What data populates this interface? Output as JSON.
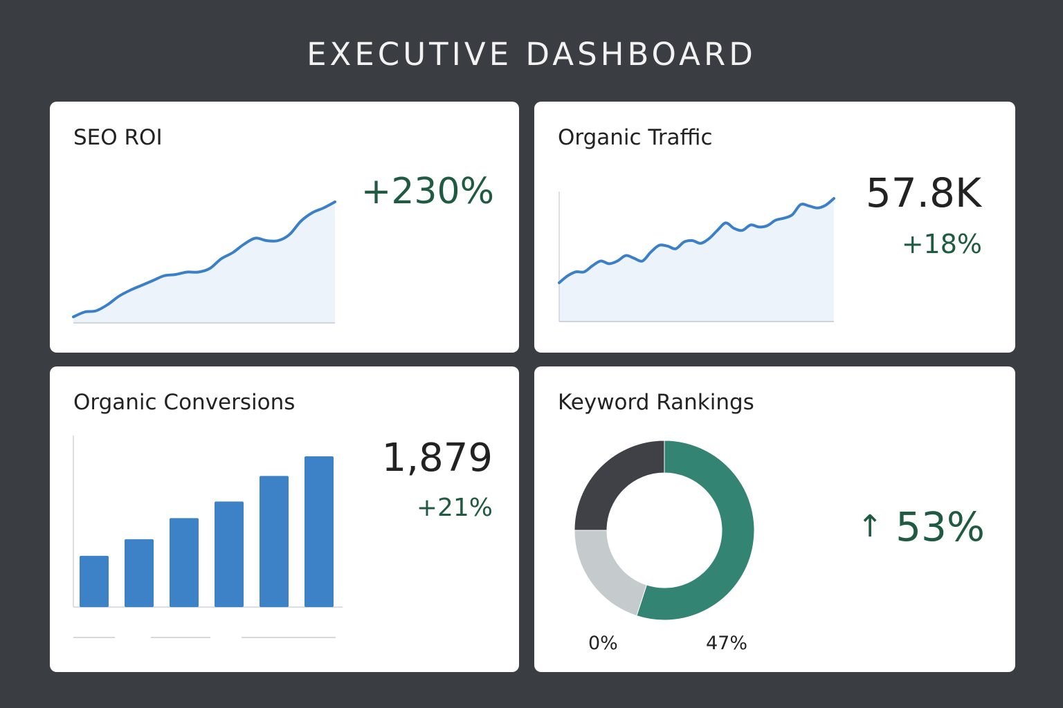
{
  "header": {
    "title": "EXECUTIVE DASHBOARD"
  },
  "colors": {
    "background": "#3a3e42",
    "card": "#ffffff",
    "line": "#3a7fc8",
    "area_fill": "#edf3fb",
    "positive": "#1f5a42",
    "bar": "#3d82c6",
    "donut_green": "#348474",
    "donut_dark": "#3f4146",
    "donut_gray": "#c5cacd"
  },
  "cards": {
    "seo_roi": {
      "title": "SEO ROI",
      "value": "+230%"
    },
    "organic_traffic": {
      "title": "Organic Traffic",
      "value": "57.8K",
      "change": "+18%"
    },
    "organic_conversions": {
      "title": "Organic Conversions",
      "value": "1,879",
      "change": "+21%"
    },
    "keyword_rankings": {
      "title": "Keyword Rankings",
      "change_icon": "arrow-up-icon",
      "change": "53%",
      "labels": [
        "0%",
        "47%"
      ]
    }
  },
  "chart_data": [
    {
      "type": "area",
      "card": "seo_roi",
      "values": [
        5,
        9,
        10,
        15,
        22,
        27,
        31,
        35,
        39,
        40,
        42,
        42,
        45,
        53,
        58,
        65,
        70,
        68,
        68,
        73,
        84,
        91,
        95,
        100
      ],
      "ylim": [
        0,
        100
      ]
    },
    {
      "type": "area",
      "card": "organic_traffic",
      "values": [
        57,
        67,
        73,
        73,
        82,
        89,
        85,
        89,
        97,
        93,
        89,
        102,
        112,
        111,
        107,
        117,
        119,
        115,
        122,
        134,
        145,
        137,
        134,
        142,
        139,
        141,
        149,
        152,
        157,
        172,
        170,
        167,
        171,
        181
      ],
      "ylim": [
        0,
        181
      ]
    },
    {
      "type": "bar",
      "card": "organic_conversions",
      "values": [
        34,
        45,
        59,
        70,
        87,
        100
      ],
      "ylim": [
        0,
        100
      ]
    },
    {
      "type": "pie",
      "card": "keyword_rankings",
      "donut": true,
      "slices": [
        {
          "value": 55,
          "color": "#348474"
        },
        {
          "value": 20,
          "color": "#c5cacd"
        },
        {
          "value": 25,
          "color": "#3f4146"
        }
      ]
    }
  ]
}
